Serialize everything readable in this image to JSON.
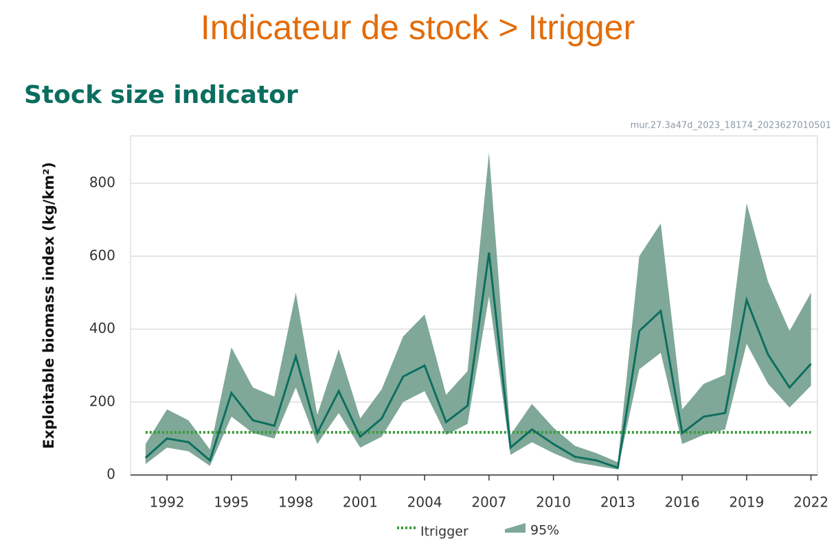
{
  "header": {
    "title": "Indicateur de stock > Itrigger"
  },
  "chart_data": {
    "type": "line",
    "title": "Stock size indicator",
    "annotation": "mur.27.3a47d_2023_18174_2023627010501",
    "ylabel": "Exploitable biomass index (kg/km²)",
    "x": [
      1991,
      1992,
      1993,
      1994,
      1995,
      1996,
      1997,
      1998,
      1999,
      2000,
      2001,
      2002,
      2003,
      2004,
      2005,
      2006,
      2007,
      2008,
      2009,
      2010,
      2011,
      2012,
      2013,
      2014,
      2015,
      2016,
      2017,
      2018,
      2019,
      2020,
      2021,
      2022
    ],
    "values": [
      47,
      100,
      90,
      40,
      225,
      150,
      135,
      325,
      115,
      230,
      105,
      155,
      270,
      300,
      145,
      190,
      610,
      75,
      125,
      85,
      50,
      40,
      20,
      395,
      450,
      115,
      160,
      170,
      480,
      330,
      240,
      305
    ],
    "color": "#0d6e5f",
    "band": {
      "name": "95%",
      "color": "#7fa898",
      "upper": [
        85,
        180,
        150,
        70,
        350,
        240,
        215,
        500,
        165,
        345,
        155,
        235,
        380,
        440,
        220,
        285,
        885,
        110,
        195,
        130,
        80,
        60,
        35,
        600,
        690,
        180,
        250,
        275,
        745,
        530,
        395,
        500
      ],
      "lower": [
        30,
        75,
        65,
        25,
        160,
        115,
        100,
        240,
        85,
        170,
        75,
        105,
        200,
        230,
        110,
        140,
        490,
        55,
        90,
        60,
        35,
        25,
        15,
        290,
        335,
        85,
        110,
        125,
        360,
        250,
        185,
        245
      ]
    },
    "reference": {
      "name": "Itrigger",
      "value": 117,
      "color": "#3a9a3a"
    },
    "xlim": [
      1990.3,
      2022.3
    ],
    "ylim": [
      0,
      930
    ],
    "xticks": [
      1992,
      1995,
      1998,
      2001,
      2004,
      2007,
      2010,
      2013,
      2016,
      2019,
      2022
    ],
    "yticks": [
      0,
      200,
      400,
      600,
      800
    ],
    "grid": true
  }
}
